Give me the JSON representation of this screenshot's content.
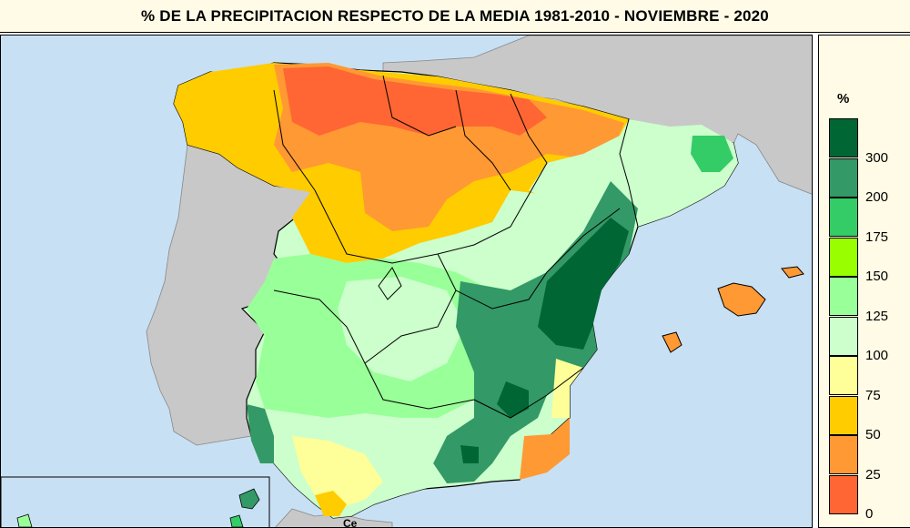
{
  "title": "% DE LA PRECIPITACION RESPECTO DE LA MEDIA 1981-2010 - NOVIEMBRE - 2020",
  "legend": {
    "unit": "%",
    "classes": [
      {
        "color": "#006633"
      },
      {
        "color": "#339966"
      },
      {
        "color": "#33cc66"
      },
      {
        "color": "#99ff00"
      },
      {
        "color": "#99ff99"
      },
      {
        "color": "#ccffcc"
      },
      {
        "color": "#ffff99"
      },
      {
        "color": "#ffcc00"
      },
      {
        "color": "#ff9933"
      },
      {
        "color": "#ff6633"
      }
    ],
    "labels": [
      "300",
      "200",
      "175",
      "150",
      "125",
      "100",
      "75",
      "50",
      "25",
      "0"
    ]
  },
  "map": {
    "ceuta_label": "Ce",
    "colors": {
      "sea": "#c8e0f4",
      "land": "#c8c8c8",
      "border": "#000000"
    }
  }
}
